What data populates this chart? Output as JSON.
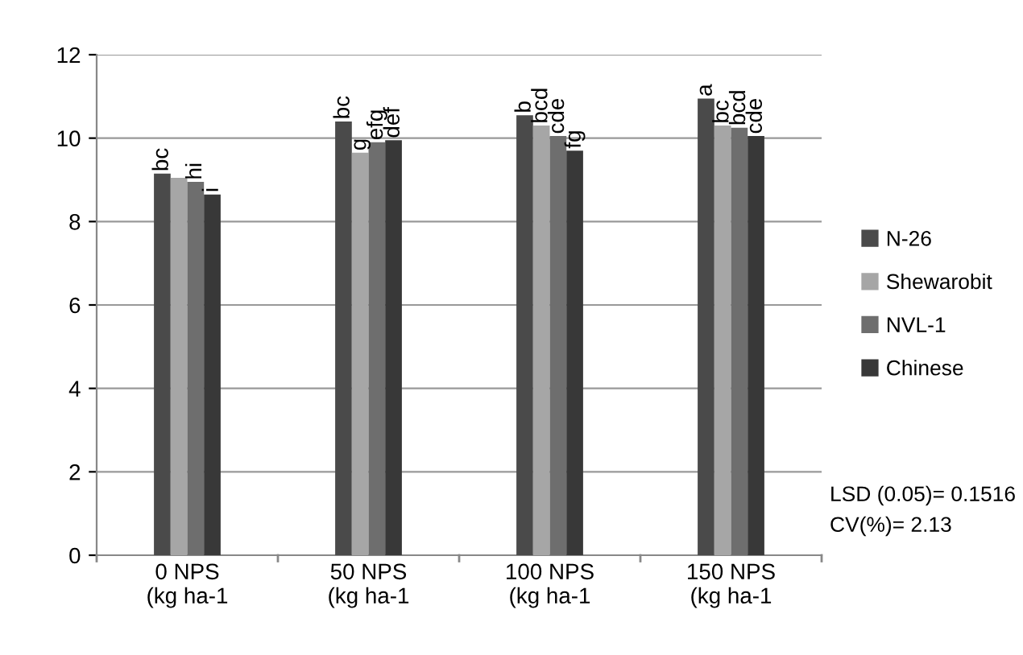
{
  "chart_data": {
    "type": "bar",
    "categories": [
      "0 NPS\n(kg ha-1",
      "50 NPS\n(kg ha-1",
      "100 NPS\n(kg ha-1",
      "150 NPS\n(kg ha-1"
    ],
    "series": [
      {
        "name": "N-26",
        "color": "#4a4a4a",
        "values": [
          9.15,
          10.4,
          10.55,
          10.95
        ],
        "value_labels": [
          "bc",
          "bc",
          "b",
          "a"
        ]
      },
      {
        "name": "Shewarobit",
        "color": "#a6a6a6",
        "values": [
          9.05,
          9.65,
          10.3,
          10.3
        ],
        "value_labels": [
          null,
          "g",
          "bcd",
          "bc"
        ]
      },
      {
        "name": "NVL-1",
        "color": "#6e6e6e",
        "values": [
          8.95,
          9.9,
          10.05,
          10.25
        ],
        "value_labels": [
          "hi",
          "efg",
          "cde",
          "bcd"
        ]
      },
      {
        "name": "Chinese",
        "color": "#383838",
        "values": [
          8.65,
          9.95,
          9.7,
          10.05
        ],
        "value_labels": [
          "i",
          "def",
          "fg",
          "cde"
        ]
      }
    ],
    "ylim": [
      0,
      12
    ],
    "yticks": [
      0,
      2,
      4,
      6,
      8,
      10,
      12
    ],
    "grid": "y",
    "legend": "right",
    "annotations": [
      "LSD (0.05)= 0.1516",
      "CV(%)= 2.13"
    ]
  }
}
